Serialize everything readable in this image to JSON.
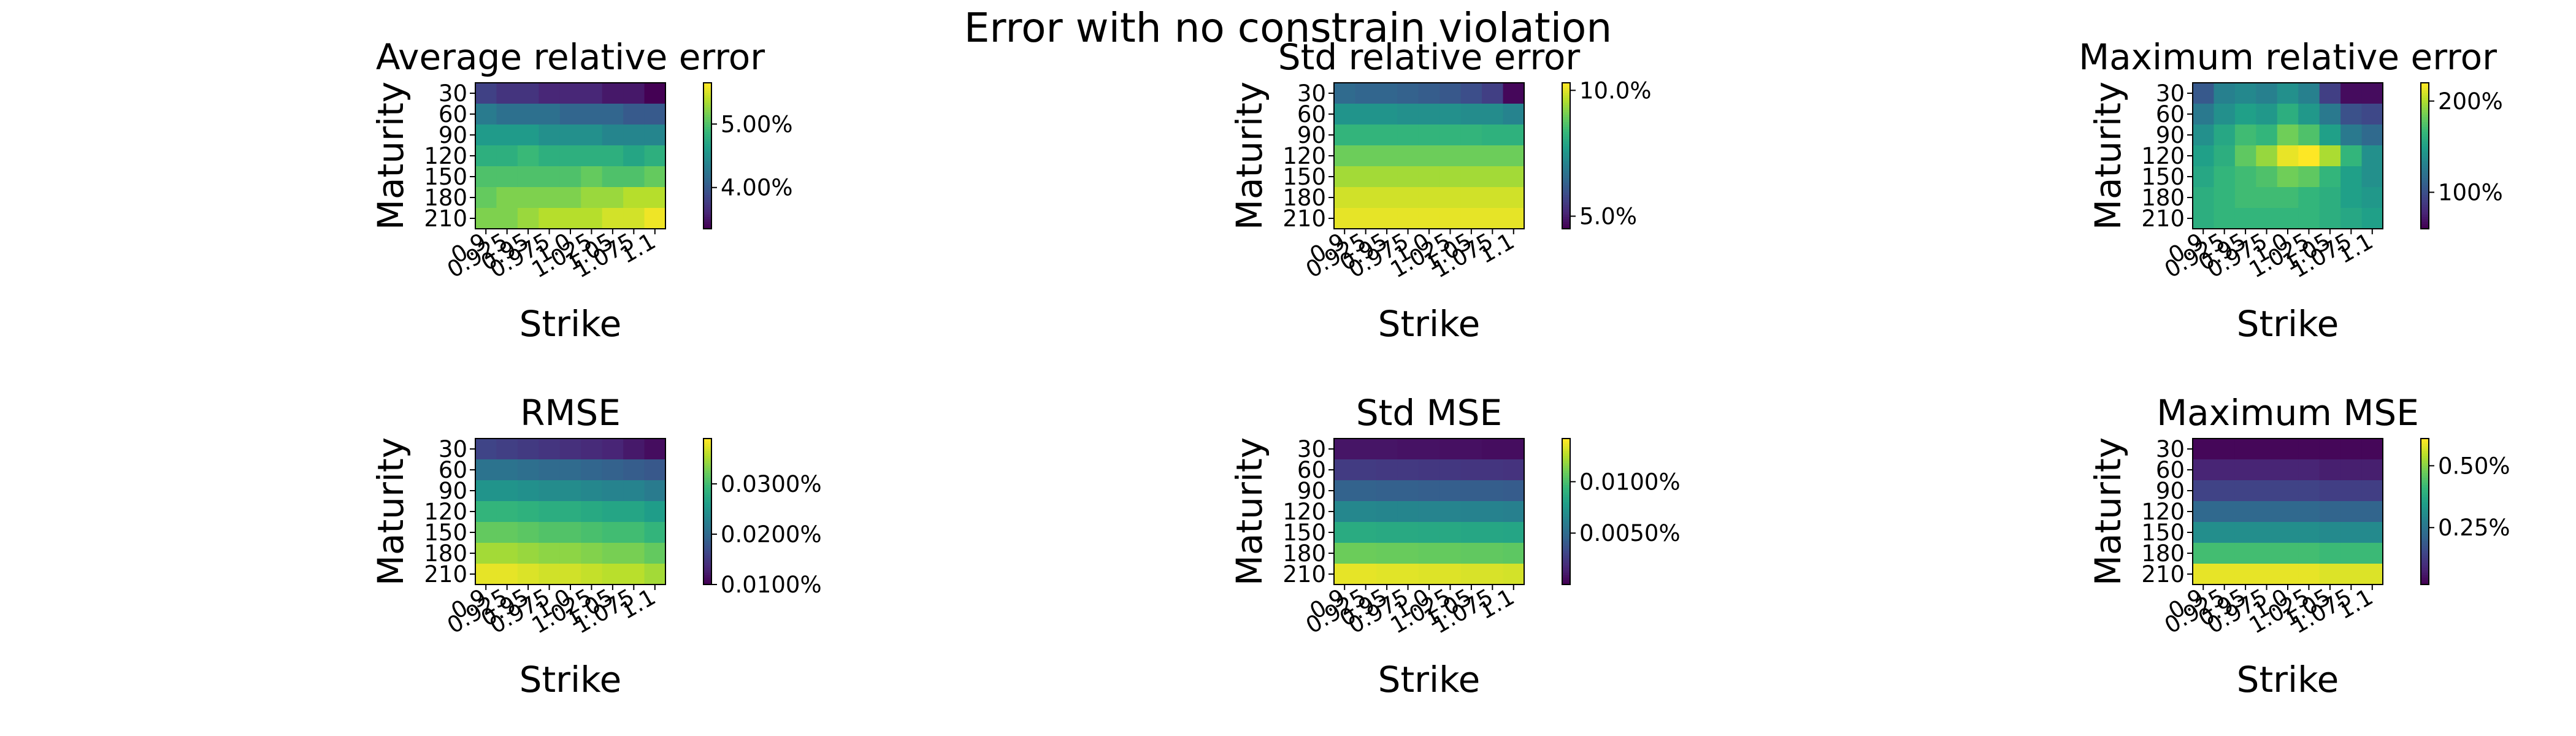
{
  "figure": {
    "suptitle": "Error with no constrain violation"
  },
  "chart_data": [
    {
      "type": "heatmap",
      "title": "Average relative error",
      "xlabel": "Strike",
      "ylabel": "Maturity",
      "x_ticks": [
        "0.9",
        "0.925",
        "0.95",
        "0.975",
        "1.0",
        "1.025",
        "1.05",
        "1.075",
        "1.1"
      ],
      "y_ticks": [
        "30",
        "60",
        "90",
        "120",
        "150",
        "180",
        "210"
      ],
      "colormap": "viridis",
      "clim": [
        3.35,
        5.65
      ],
      "colorbar_ticks": [
        {
          "value": 4.0,
          "label": "4.00%"
        },
        {
          "value": 5.0,
          "label": "5.00%"
        }
      ],
      "values": [
        [
          3.8,
          3.7,
          3.7,
          3.6,
          3.6,
          3.6,
          3.5,
          3.5,
          3.35
        ],
        [
          4.3,
          4.2,
          4.2,
          4.2,
          4.1,
          4.1,
          4.1,
          4.0,
          4.0
        ],
        [
          4.6,
          4.6,
          4.6,
          4.5,
          4.5,
          4.5,
          4.4,
          4.4,
          4.4
        ],
        [
          4.8,
          4.8,
          4.9,
          4.8,
          4.8,
          4.8,
          4.8,
          4.7,
          4.8
        ],
        [
          5.0,
          5.0,
          5.0,
          5.0,
          5.0,
          5.1,
          5.0,
          5.0,
          5.1
        ],
        [
          5.1,
          5.2,
          5.2,
          5.2,
          5.2,
          5.3,
          5.3,
          5.4,
          5.4
        ],
        [
          5.2,
          5.2,
          5.3,
          5.4,
          5.4,
          5.4,
          5.5,
          5.5,
          5.6
        ]
      ]
    },
    {
      "type": "heatmap",
      "title": "Std relative error",
      "xlabel": "Strike",
      "ylabel": "Maturity",
      "x_ticks": [
        "0.9",
        "0.925",
        "0.95",
        "0.975",
        "1.0",
        "1.025",
        "1.05",
        "1.075",
        "1.1"
      ],
      "y_ticks": [
        "30",
        "60",
        "90",
        "120",
        "150",
        "180",
        "210"
      ],
      "colormap": "viridis",
      "clim": [
        4.5,
        10.3
      ],
      "colorbar_ticks": [
        {
          "value": 5.0,
          "label": "5.0%"
        },
        {
          "value": 10.0,
          "label": "10.0%"
        }
      ],
      "values": [
        [
          6.5,
          6.4,
          6.4,
          6.3,
          6.2,
          6.1,
          5.9,
          5.6,
          4.6
        ],
        [
          7.5,
          7.5,
          7.5,
          7.4,
          7.4,
          7.4,
          7.3,
          7.3,
          7.1
        ],
        [
          8.3,
          8.3,
          8.3,
          8.3,
          8.3,
          8.3,
          8.3,
          8.2,
          8.2
        ],
        [
          9.0,
          9.0,
          9.0,
          9.0,
          9.0,
          9.0,
          9.0,
          9.0,
          9.0
        ],
        [
          9.5,
          9.5,
          9.5,
          9.5,
          9.5,
          9.5,
          9.5,
          9.5,
          9.5
        ],
        [
          9.9,
          9.9,
          9.9,
          9.9,
          9.9,
          9.9,
          9.9,
          9.9,
          9.9
        ],
        [
          10.1,
          10.1,
          10.1,
          10.1,
          10.1,
          10.1,
          10.1,
          10.1,
          10.1
        ]
      ]
    },
    {
      "type": "heatmap",
      "title": "Maximum relative error",
      "xlabel": "Strike",
      "ylabel": "Maturity",
      "x_ticks": [
        "0.9",
        "0.925",
        "0.95",
        "0.975",
        "1.0",
        "1.025",
        "1.05",
        "1.075",
        "1.1"
      ],
      "y_ticks": [
        "30",
        "60",
        "90",
        "120",
        "150",
        "180",
        "210"
      ],
      "colormap": "viridis",
      "clim": [
        60,
        220
      ],
      "colorbar_ticks": [
        {
          "value": 100,
          "label": "100%"
        },
        {
          "value": 200,
          "label": "200%"
        }
      ],
      "values": [
        [
          105,
          130,
          135,
          130,
          140,
          130,
          90,
          65,
          65
        ],
        [
          125,
          140,
          150,
          145,
          160,
          145,
          125,
          100,
          95
        ],
        [
          140,
          155,
          170,
          165,
          185,
          175,
          150,
          125,
          115
        ],
        [
          150,
          160,
          180,
          195,
          215,
          220,
          200,
          165,
          140
        ],
        [
          155,
          165,
          170,
          175,
          185,
          180,
          165,
          150,
          140
        ],
        [
          160,
          165,
          170,
          170,
          170,
          165,
          160,
          150,
          145
        ],
        [
          160,
          165,
          165,
          165,
          165,
          165,
          160,
          155,
          150
        ]
      ]
    },
    {
      "type": "heatmap",
      "title": "RMSE",
      "xlabel": "Strike",
      "ylabel": "Maturity",
      "x_ticks": [
        "0.9",
        "0.925",
        "0.95",
        "0.975",
        "1.0",
        "1.025",
        "1.05",
        "1.075",
        "1.1"
      ],
      "y_ticks": [
        "30",
        "60",
        "90",
        "120",
        "150",
        "180",
        "210"
      ],
      "colormap": "viridis",
      "clim": [
        0.01,
        0.039
      ],
      "colorbar_ticks": [
        {
          "value": 0.01,
          "label": "0.0100%"
        },
        {
          "value": 0.02,
          "label": "0.0200%"
        },
        {
          "value": 0.03,
          "label": "0.0300%"
        }
      ],
      "values": [
        [
          0.016,
          0.0155,
          0.015,
          0.0145,
          0.014,
          0.0135,
          0.013,
          0.012,
          0.011
        ],
        [
          0.021,
          0.021,
          0.0205,
          0.02,
          0.02,
          0.0195,
          0.019,
          0.0185,
          0.018
        ],
        [
          0.025,
          0.025,
          0.0245,
          0.024,
          0.024,
          0.0235,
          0.023,
          0.023,
          0.022
        ],
        [
          0.029,
          0.029,
          0.0285,
          0.028,
          0.028,
          0.0275,
          0.027,
          0.027,
          0.026
        ],
        [
          0.032,
          0.032,
          0.0315,
          0.031,
          0.031,
          0.0305,
          0.03,
          0.03,
          0.029
        ],
        [
          0.035,
          0.035,
          0.0345,
          0.034,
          0.034,
          0.0335,
          0.033,
          0.033,
          0.032
        ],
        [
          0.038,
          0.038,
          0.0375,
          0.037,
          0.037,
          0.0365,
          0.036,
          0.036,
          0.035
        ]
      ]
    },
    {
      "type": "heatmap",
      "title": "Std MSE",
      "xlabel": "Strike",
      "ylabel": "Maturity",
      "x_ticks": [
        "0.9",
        "0.925",
        "0.95",
        "0.975",
        "1.0",
        "1.025",
        "1.05",
        "1.075",
        "1.1"
      ],
      "y_ticks": [
        "30",
        "60",
        "90",
        "120",
        "150",
        "180",
        "210"
      ],
      "colormap": "viridis",
      "clim": [
        0.0,
        0.0142
      ],
      "colorbar_ticks": [
        {
          "value": 0.005,
          "label": "0.0050%"
        },
        {
          "value": 0.01,
          "label": "0.0100%"
        }
      ],
      "values": [
        [
          0.0008,
          0.0008,
          0.0008,
          0.0007,
          0.0007,
          0.0006,
          0.0006,
          0.0005,
          0.0005
        ],
        [
          0.0025,
          0.0025,
          0.0024,
          0.0024,
          0.0023,
          0.0023,
          0.0022,
          0.0022,
          0.0021
        ],
        [
          0.0045,
          0.0045,
          0.0044,
          0.0044,
          0.0043,
          0.0043,
          0.0042,
          0.0042,
          0.0041
        ],
        [
          0.0066,
          0.0066,
          0.0065,
          0.0065,
          0.0064,
          0.0064,
          0.0063,
          0.0063,
          0.0062
        ],
        [
          0.0087,
          0.0087,
          0.0086,
          0.0086,
          0.0085,
          0.0085,
          0.0084,
          0.0084,
          0.0083
        ],
        [
          0.011,
          0.011,
          0.0109,
          0.0109,
          0.0108,
          0.0108,
          0.0107,
          0.0107,
          0.0106
        ],
        [
          0.0137,
          0.0137,
          0.0136,
          0.0136,
          0.0135,
          0.0135,
          0.0134,
          0.0134,
          0.0133
        ]
      ]
    },
    {
      "type": "heatmap",
      "title": "Maximum MSE",
      "xlabel": "Strike",
      "ylabel": "Maturity",
      "x_ticks": [
        "0.9",
        "0.925",
        "0.95",
        "0.975",
        "1.0",
        "1.025",
        "1.05",
        "1.075",
        "1.1"
      ],
      "y_ticks": [
        "30",
        "60",
        "90",
        "120",
        "150",
        "180",
        "210"
      ],
      "colormap": "viridis",
      "clim": [
        0.02,
        0.61
      ],
      "colorbar_ticks": [
        {
          "value": 0.25,
          "label": "0.25%"
        },
        {
          "value": 0.5,
          "label": "0.50%"
        }
      ],
      "values": [
        [
          0.03,
          0.03,
          0.03,
          0.03,
          0.03,
          0.03,
          0.03,
          0.03,
          0.03
        ],
        [
          0.08,
          0.08,
          0.08,
          0.08,
          0.08,
          0.08,
          0.07,
          0.07,
          0.07
        ],
        [
          0.14,
          0.14,
          0.14,
          0.14,
          0.14,
          0.14,
          0.13,
          0.13,
          0.13
        ],
        [
          0.22,
          0.22,
          0.22,
          0.22,
          0.22,
          0.22,
          0.21,
          0.21,
          0.21
        ],
        [
          0.31,
          0.31,
          0.31,
          0.31,
          0.31,
          0.31,
          0.3,
          0.3,
          0.3
        ],
        [
          0.43,
          0.43,
          0.43,
          0.43,
          0.43,
          0.43,
          0.42,
          0.42,
          0.42
        ],
        [
          0.59,
          0.59,
          0.59,
          0.59,
          0.59,
          0.59,
          0.58,
          0.58,
          0.58
        ]
      ]
    }
  ]
}
